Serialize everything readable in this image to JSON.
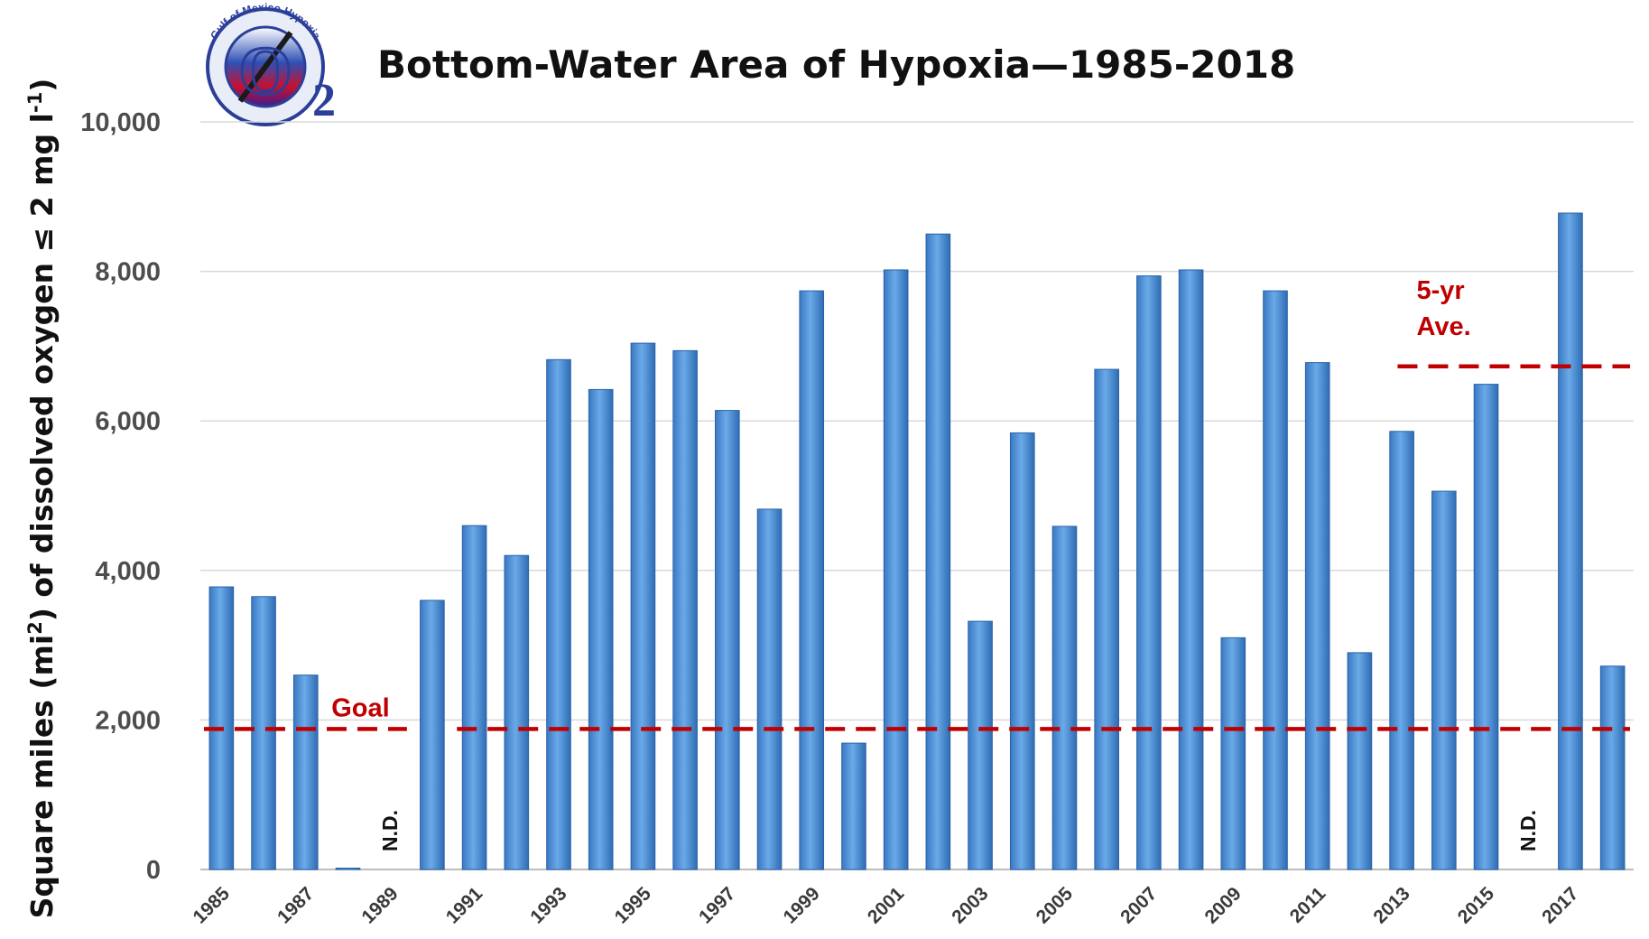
{
  "chart_data": {
    "type": "bar",
    "title": "Bottom-Water Area of Hypoxia—1985-2018",
    "ylabel_parts": [
      "Square miles (mi",
      "2",
      ") of dissolved oxygen ≤ 2 mg l",
      "-1",
      ")"
    ],
    "xlabel": "",
    "ylim": [
      0,
      10000
    ],
    "yticks": [
      0,
      2000,
      4000,
      6000,
      8000,
      10000
    ],
    "ytick_labels": [
      "0",
      "2,000",
      "4,000",
      "6,000",
      "8,000",
      "10,000"
    ],
    "grid": true,
    "categories": [
      "1985",
      "1986",
      "1987",
      "1988",
      "1989",
      "1990",
      "1991",
      "1992",
      "1993",
      "1994",
      "1995",
      "1996",
      "1997",
      "1998",
      "1999",
      "2000",
      "2001",
      "2002",
      "2003",
      "2004",
      "2005",
      "2006",
      "2007",
      "2008",
      "2009",
      "2010",
      "2011",
      "2012",
      "2013",
      "2014",
      "2015",
      "2016",
      "2017",
      "2018"
    ],
    "xtick_labels": [
      "1985",
      "",
      "1987",
      "",
      "1989",
      "",
      "1991",
      "",
      "1993",
      "",
      "1995",
      "",
      "1997",
      "",
      "1999",
      "",
      "2001",
      "",
      "2003",
      "",
      "2005",
      "",
      "2007",
      "",
      "2009",
      "",
      "2011",
      "",
      "2013",
      "",
      "2015",
      "",
      "2017",
      ""
    ],
    "values": [
      3780,
      3650,
      2600,
      15,
      null,
      3600,
      4600,
      4200,
      6820,
      6420,
      7040,
      6940,
      6140,
      4820,
      7740,
      1690,
      8020,
      8500,
      3320,
      5840,
      4590,
      6690,
      7940,
      8020,
      3100,
      7740,
      6780,
      2900,
      5860,
      5060,
      6490,
      null,
      8780,
      2720
    ],
    "series_color": "#4a90d9",
    "reference_lines": [
      {
        "label": "Goal",
        "value": 1880,
        "color": "#c00000",
        "segments": [
          [
            "1985",
            "1989"
          ],
          [
            "1991",
            "2018"
          ]
        ]
      },
      {
        "label_lines": [
          "5-yr",
          "Ave."
        ],
        "value": 6730,
        "color": "#c00000",
        "segments": [
          [
            "2013",
            "2018"
          ]
        ]
      }
    ],
    "annotations": [
      {
        "text": "N.D.",
        "category": "1989"
      },
      {
        "text": "N.D.",
        "category": "2016"
      }
    ]
  },
  "logo": {
    "ring_text": "Gulf of Mexico Hypoxia",
    "center_text": "O",
    "subscript": "2"
  }
}
